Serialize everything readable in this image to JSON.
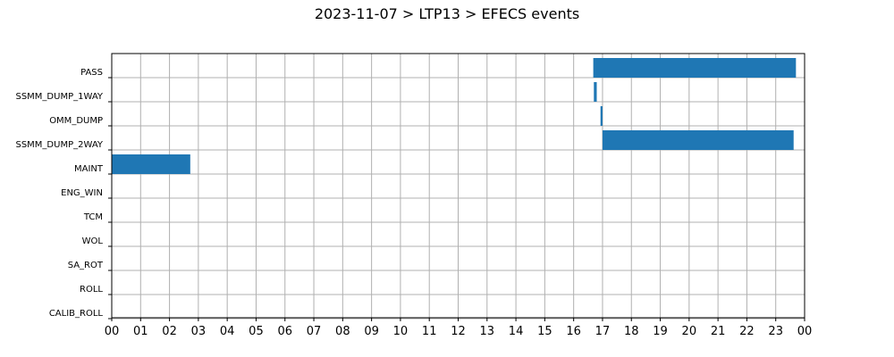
{
  "title": "2023-11-07 > LTP13 > EFECS events",
  "colors": {
    "bar": "#1f77b4",
    "grid": "#b0b0b0",
    "axis": "#000000"
  },
  "chart_data": {
    "type": "bar",
    "orientation": "horizontal",
    "title": "2023-11-07 > LTP13 > EFECS events",
    "xlabel": "",
    "ylabel": "",
    "xlim": [
      0,
      24
    ],
    "grid": true,
    "x_tick_values": [
      0,
      1,
      2,
      3,
      4,
      5,
      6,
      7,
      8,
      9,
      10,
      11,
      12,
      13,
      14,
      15,
      16,
      17,
      18,
      19,
      20,
      21,
      22,
      23,
      24
    ],
    "x_tick_labels": [
      "00",
      "01",
      "02",
      "03",
      "04",
      "05",
      "06",
      "07",
      "08",
      "09",
      "10",
      "11",
      "12",
      "13",
      "14",
      "15",
      "16",
      "17",
      "18",
      "19",
      "20",
      "21",
      "22",
      "23",
      "00"
    ],
    "categories": [
      "PASS",
      "SSMM_DUMP_1WAY",
      "OMM_DUMP",
      "SSMM_DUMP_2WAY",
      "MAINT",
      "ENG_WIN",
      "TCM",
      "WOL",
      "SA_ROT",
      "ROLL",
      "CALIB_ROLL"
    ],
    "events": [
      {
        "category": "PASS",
        "start": 16.68,
        "end": 23.7
      },
      {
        "category": "SSMM_DUMP_1WAY",
        "start": 16.7,
        "end": 16.8
      },
      {
        "category": "OMM_DUMP",
        "start": 16.93,
        "end": 17.0
      },
      {
        "category": "SSMM_DUMP_2WAY",
        "start": 17.0,
        "end": 23.62
      },
      {
        "category": "MAINT",
        "start": 0.0,
        "end": 2.72
      }
    ]
  }
}
